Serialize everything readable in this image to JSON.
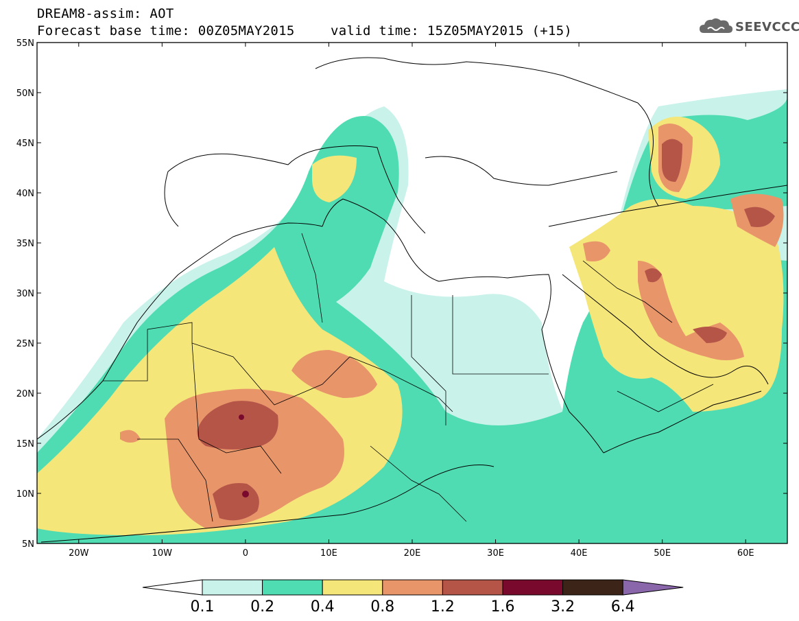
{
  "header": {
    "title_line1": "DREAM8-assim: AOT",
    "title_line2": "Forecast base time: 00Z05MAY2015",
    "valid_time": "valid time: 15Z05MAY2015 (+15)"
  },
  "logo": {
    "text": "SEEVCCC"
  },
  "map": {
    "lon_range": [
      -25,
      65
    ],
    "lat_range": [
      5,
      55
    ],
    "lat_labels": [
      {
        "lat": 55,
        "label": "55N"
      },
      {
        "lat": 50,
        "label": "50N"
      },
      {
        "lat": 45,
        "label": "45N"
      },
      {
        "lat": 40,
        "label": "40N"
      },
      {
        "lat": 35,
        "label": "35N"
      },
      {
        "lat": 30,
        "label": "30N"
      },
      {
        "lat": 25,
        "label": "25N"
      },
      {
        "lat": 20,
        "label": "20N"
      },
      {
        "lat": 15,
        "label": "15N"
      },
      {
        "lat": 10,
        "label": "10N"
      },
      {
        "lat": 5,
        "label": "5N"
      }
    ],
    "lon_labels": [
      {
        "lon": -20,
        "label": "20W"
      },
      {
        "lon": -10,
        "label": "10W"
      },
      {
        "lon": 0,
        "label": "0"
      },
      {
        "lon": 10,
        "label": "10E"
      },
      {
        "lon": 20,
        "label": "20E"
      },
      {
        "lon": 30,
        "label": "30E"
      },
      {
        "lon": 40,
        "label": "40E"
      },
      {
        "lon": 50,
        "label": "50E"
      },
      {
        "lon": 60,
        "label": "60E"
      }
    ]
  },
  "colorbar": {
    "labels": [
      "0.1",
      "0.2",
      "0.4",
      "0.8",
      "1.2",
      "1.6",
      "3.2",
      "6.4"
    ],
    "colors": [
      "#ffffff",
      "#c8f2ea",
      "#4fdcb2",
      "#f5e67a",
      "#e8956a",
      "#b55548",
      "#7a0a2d",
      "#3c2418",
      "#8a66aa"
    ]
  }
}
